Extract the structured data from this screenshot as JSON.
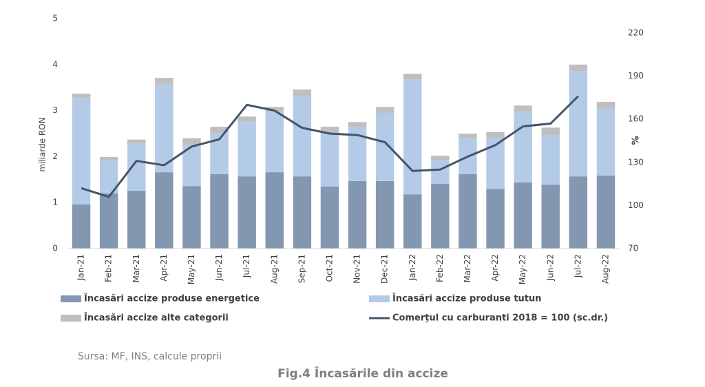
{
  "chart_data": {
    "type": "bar",
    "categories": [
      "Jan-21",
      "Feb-21",
      "Mar-21",
      "Apr-21",
      "May-21",
      "Jun-21",
      "Jul-21",
      "Aug-21",
      "Sep-21",
      "Oct-21",
      "Nov-21",
      "Dec-21",
      "Jan-22",
      "Feb-22",
      "Mar-22",
      "Apr-22",
      "May-22",
      "Jun-22",
      "Jul-22",
      "Aug-22"
    ],
    "stacked": true,
    "series": [
      {
        "name": "Încasări accize produse energetice",
        "color": "#8497b0",
        "values": [
          0.96,
          1.2,
          1.26,
          1.66,
          1.36,
          1.62,
          1.57,
          1.66,
          1.57,
          1.35,
          1.47,
          1.47,
          1.18,
          1.41,
          1.62,
          1.3,
          1.44,
          1.39,
          1.57,
          1.59
        ]
      },
      {
        "name": "Încasări accize produse tutun",
        "color": "#b4cbe8",
        "values": [
          2.32,
          0.72,
          1.02,
          1.92,
          0.89,
          0.89,
          1.2,
          1.32,
          1.74,
          1.16,
          1.18,
          1.48,
          2.5,
          0.52,
          0.78,
          1.1,
          1.54,
          1.08,
          2.28,
          1.45
        ]
      },
      {
        "name": "Încasări accize alte categorii",
        "color": "#bfbfbf",
        "values": [
          0.09,
          0.07,
          0.09,
          0.13,
          0.15,
          0.14,
          0.1,
          0.1,
          0.15,
          0.14,
          0.1,
          0.13,
          0.12,
          0.09,
          0.1,
          0.13,
          0.13,
          0.16,
          0.15,
          0.15
        ]
      },
      {
        "name": "Comerțul cu carburanti 2018 = 100 (sc.dr.)",
        "color": "#44546a",
        "type": "line",
        "axis": "y2",
        "values": [
          112,
          106,
          131,
          128,
          141,
          146,
          170,
          166,
          154,
          150,
          149,
          144,
          124,
          125,
          134,
          142,
          155,
          157,
          176,
          null
        ]
      }
    ],
    "y_label": "miliarde RON",
    "y2_label": "%",
    "ylim": [
      0,
      5
    ],
    "yticks": [
      0,
      1,
      2,
      3,
      4,
      5
    ],
    "y2lim": [
      70,
      230
    ],
    "y2ticks": [
      70,
      100,
      130,
      160,
      190,
      220
    ],
    "source": "Sursa: MF, INS, calcule proprii",
    "title": "Fig.4 Încasările din accize"
  }
}
